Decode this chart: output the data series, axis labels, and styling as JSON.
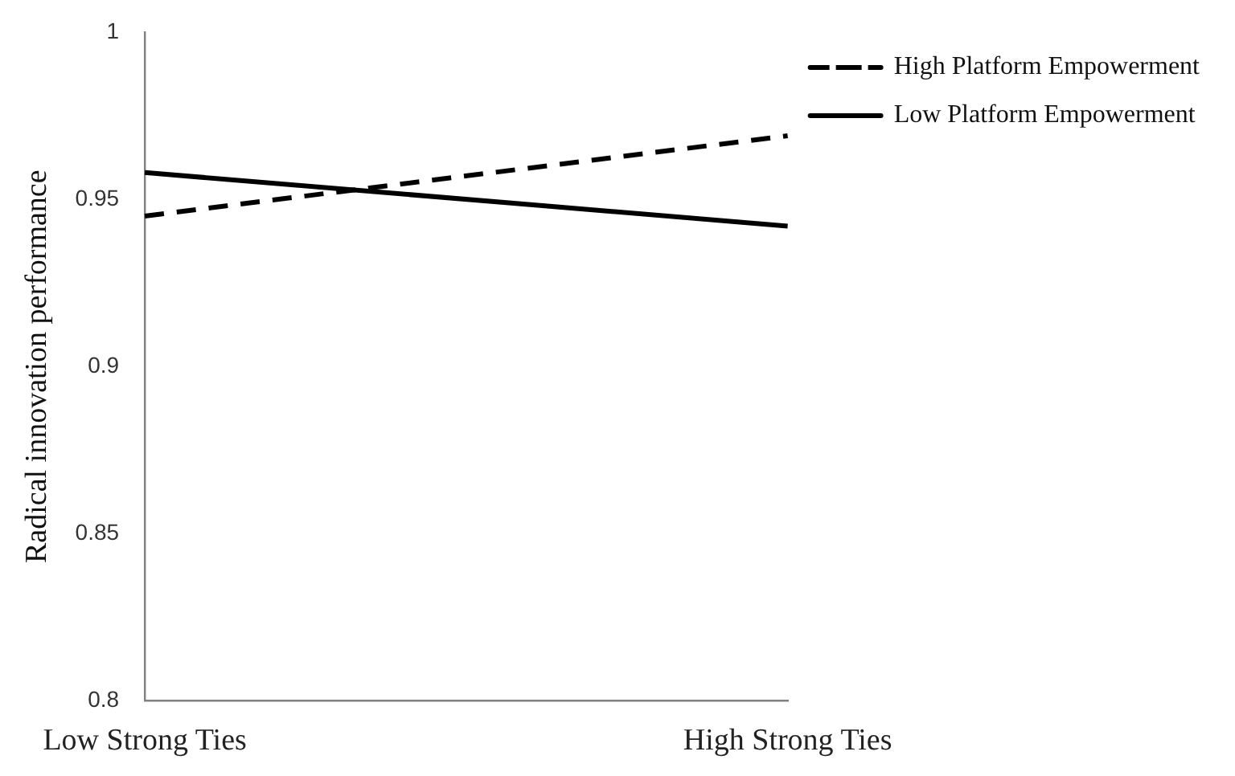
{
  "chart_data": {
    "type": "line",
    "ylabel": "Radical innovation performance",
    "categories": [
      "Low Strong Ties",
      "High Strong Ties"
    ],
    "series": [
      {
        "name": "Low Platform Empowerment",
        "color": "#000000",
        "values": [
          0.958,
          0.942
        ],
        "line_style": "solid"
      },
      {
        "name": "High Platform Empowerment",
        "color": "#000000",
        "values": [
          0.945,
          0.969
        ],
        "line_style": "dashed"
      }
    ],
    "ylim": [
      0.8,
      1
    ],
    "yticks": [
      0.8,
      0.85,
      0.9,
      0.95,
      1
    ],
    "grid": false,
    "legend": "right",
    "marker": "none"
  }
}
